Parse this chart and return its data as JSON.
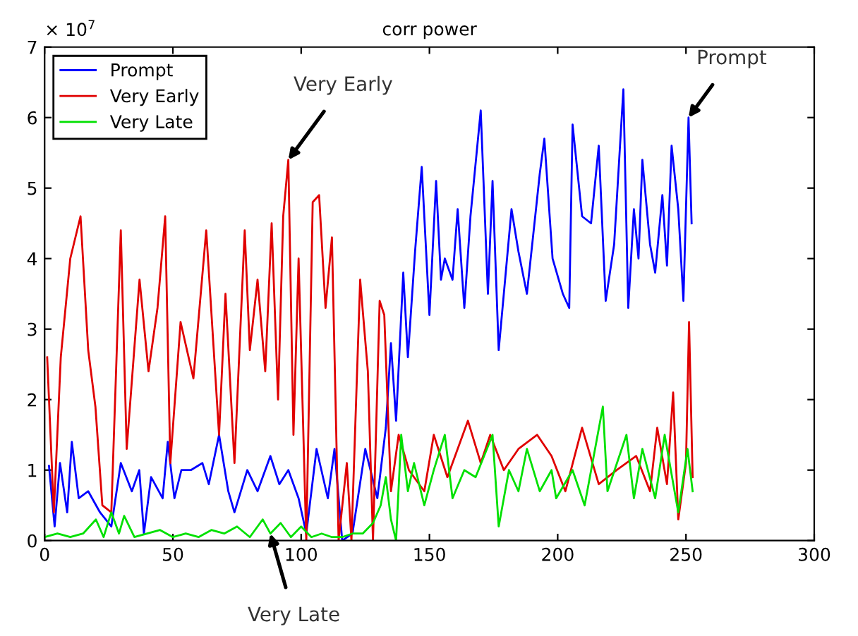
{
  "chart_data": {
    "type": "line",
    "title": "corr power",
    "xlim": [
      0,
      300
    ],
    "xticks": [
      0,
      50,
      100,
      150,
      200,
      250,
      300
    ],
    "ylim": [
      0,
      7
    ],
    "yticks": [
      0,
      1,
      2,
      3,
      4,
      5,
      6,
      7
    ],
    "grid": false,
    "legend": "top left",
    "marker": "none",
    "line_style": "solid",
    "annotations": [
      {
        "text": "Very Early",
        "x": 95,
        "y": 5.4
      },
      {
        "text": "Prompt",
        "x": 251,
        "y": 6.0
      },
      {
        "text": "Very Late",
        "x": 88,
        "y": 0.1
      },
      "× 10$^{7}$"
    ],
    "series": [
      {
        "name": "Prompt",
        "color": "#0000ff",
        "x": [
          1.7,
          3.9,
          6,
          8.8,
          10.6,
          13.3,
          17,
          21.6,
          26,
          29.7,
          34,
          36.9,
          38.7,
          41.5,
          46,
          48,
          50.6,
          53.3,
          57,
          61.5,
          64,
          68,
          71.6,
          74,
          79,
          83,
          88,
          91.5,
          95,
          99,
          102,
          106,
          110.4,
          113,
          116,
          120,
          125,
          129.7,
          133,
          135,
          137,
          139.8,
          141.6,
          144.4,
          147,
          150,
          152.6,
          154.5,
          156,
          159,
          161,
          163.6,
          166,
          170,
          172.8,
          174.6,
          177,
          182,
          184.7,
          188,
          193,
          194.8,
          198,
          202,
          204.5,
          205.8,
          209.5,
          213,
          216,
          218.7,
          222,
          225.6,
          227.5,
          229.7,
          231.5,
          233,
          236,
          238,
          240.8,
          242.6,
          244.4,
          247,
          249,
          251,
          252.2
        ],
        "values": [
          1.06,
          0.2,
          1.1,
          0.4,
          1.4,
          0.6,
          0.7,
          0.4,
          0.2,
          1.1,
          0.7,
          1.0,
          0.1,
          0.9,
          0.6,
          1.4,
          0.6,
          1.0,
          1.0,
          1.1,
          0.8,
          1.5,
          0.7,
          0.4,
          1.0,
          0.7,
          1.2,
          0.8,
          1.0,
          0.6,
          0.1,
          1.3,
          0.6,
          1.3,
          0,
          0.1,
          1.3,
          0.6,
          1.6,
          2.8,
          1.7,
          3.8,
          2.6,
          4.1,
          5.3,
          3.2,
          5.1,
          3.7,
          4.0,
          3.7,
          4.7,
          3.3,
          4.6,
          6.1,
          3.5,
          5.1,
          2.7,
          4.7,
          4.1,
          3.5,
          5.2,
          5.7,
          4.0,
          3.5,
          3.3,
          5.9,
          4.6,
          4.5,
          5.6,
          3.4,
          4.2,
          6.4,
          3.3,
          4.7,
          4.0,
          5.4,
          4.2,
          3.8,
          4.9,
          3.9,
          5.6,
          4.7,
          3.4,
          6.0,
          4.5
        ]
      },
      {
        "name": "Very Early",
        "color": "#e00000",
        "x": [
          1,
          3.6,
          6.3,
          10,
          14,
          17,
          19.8,
          22.5,
          26,
          29.7,
          32,
          37,
          40.5,
          44,
          47,
          49,
          53,
          58,
          63,
          68,
          70.5,
          74,
          78,
          80,
          83,
          86,
          88.5,
          91,
          93,
          95,
          97,
          99,
          102,
          104.5,
          107,
          109.5,
          112,
          114.6,
          117.8,
          119.6,
          123,
          126,
          128,
          130.6,
          132.4,
          135,
          138,
          142,
          148,
          151.7,
          157,
          165,
          170,
          173.7,
          179,
          184.7,
          192,
          197.6,
          203,
          209.5,
          216,
          223,
          230.6,
          236,
          238.8,
          242.6,
          245,
          247,
          250,
          251.2,
          252.6
        ],
        "values": [
          2.6,
          0.4,
          2.6,
          4.0,
          4.6,
          2.7,
          1.9,
          0.5,
          0.4,
          4.4,
          1.3,
          3.7,
          2.4,
          3.3,
          4.6,
          1.1,
          3.1,
          2.3,
          4.4,
          1.5,
          3.5,
          1.1,
          4.4,
          2.7,
          3.7,
          2.4,
          4.5,
          2.0,
          4.6,
          5.4,
          1.5,
          4.0,
          0,
          4.8,
          4.9,
          3.3,
          4.3,
          0,
          1.1,
          0,
          3.7,
          2.4,
          0,
          3.4,
          3.2,
          0.7,
          1.5,
          1.0,
          0.7,
          1.5,
          0.9,
          1.7,
          1.1,
          1.5,
          1.0,
          1.3,
          1.5,
          1.2,
          0.7,
          1.6,
          0.8,
          1.0,
          1.2,
          0.7,
          1.6,
          0.8,
          2.1,
          0.3,
          1.1,
          3.1,
          0.9
        ]
      },
      {
        "name": "Very Late",
        "color": "#00e000",
        "x": [
          0,
          5,
          10,
          15,
          20,
          23,
          26,
          29,
          31,
          35,
          40,
          45,
          50,
          55,
          60,
          65,
          70,
          75,
          80,
          85,
          88,
          92,
          96,
          100,
          104,
          108,
          112,
          116,
          120,
          124,
          128,
          131,
          133,
          135,
          137,
          139,
          141.6,
          144,
          148,
          151.7,
          156,
          159,
          163.6,
          168,
          174.6,
          177,
          181,
          184.7,
          188,
          193,
          197.6,
          199.4,
          205.8,
          210.5,
          217.6,
          219.4,
          226.8,
          229.7,
          233,
          238,
          241.7,
          247,
          250.6,
          252.6
        ],
        "values": [
          0.05,
          0.1,
          0.05,
          0.1,
          0.3,
          0.05,
          0.4,
          0.1,
          0.35,
          0.05,
          0.1,
          0.15,
          0.05,
          0.1,
          0.05,
          0.15,
          0.1,
          0.2,
          0.05,
          0.3,
          0.1,
          0.25,
          0.05,
          0.2,
          0.05,
          0.1,
          0.05,
          0.05,
          0.1,
          0.1,
          0.25,
          0.5,
          0.9,
          0.3,
          0,
          1.5,
          0.7,
          1.1,
          0.5,
          1.0,
          1.5,
          0.6,
          1.0,
          0.9,
          1.5,
          0.2,
          1.0,
          0.7,
          1.3,
          0.7,
          1.0,
          0.6,
          1.0,
          0.5,
          1.9,
          0.7,
          1.5,
          0.6,
          1.3,
          0.6,
          1.5,
          0.4,
          1.3,
          0.7
        ]
      }
    ]
  }
}
